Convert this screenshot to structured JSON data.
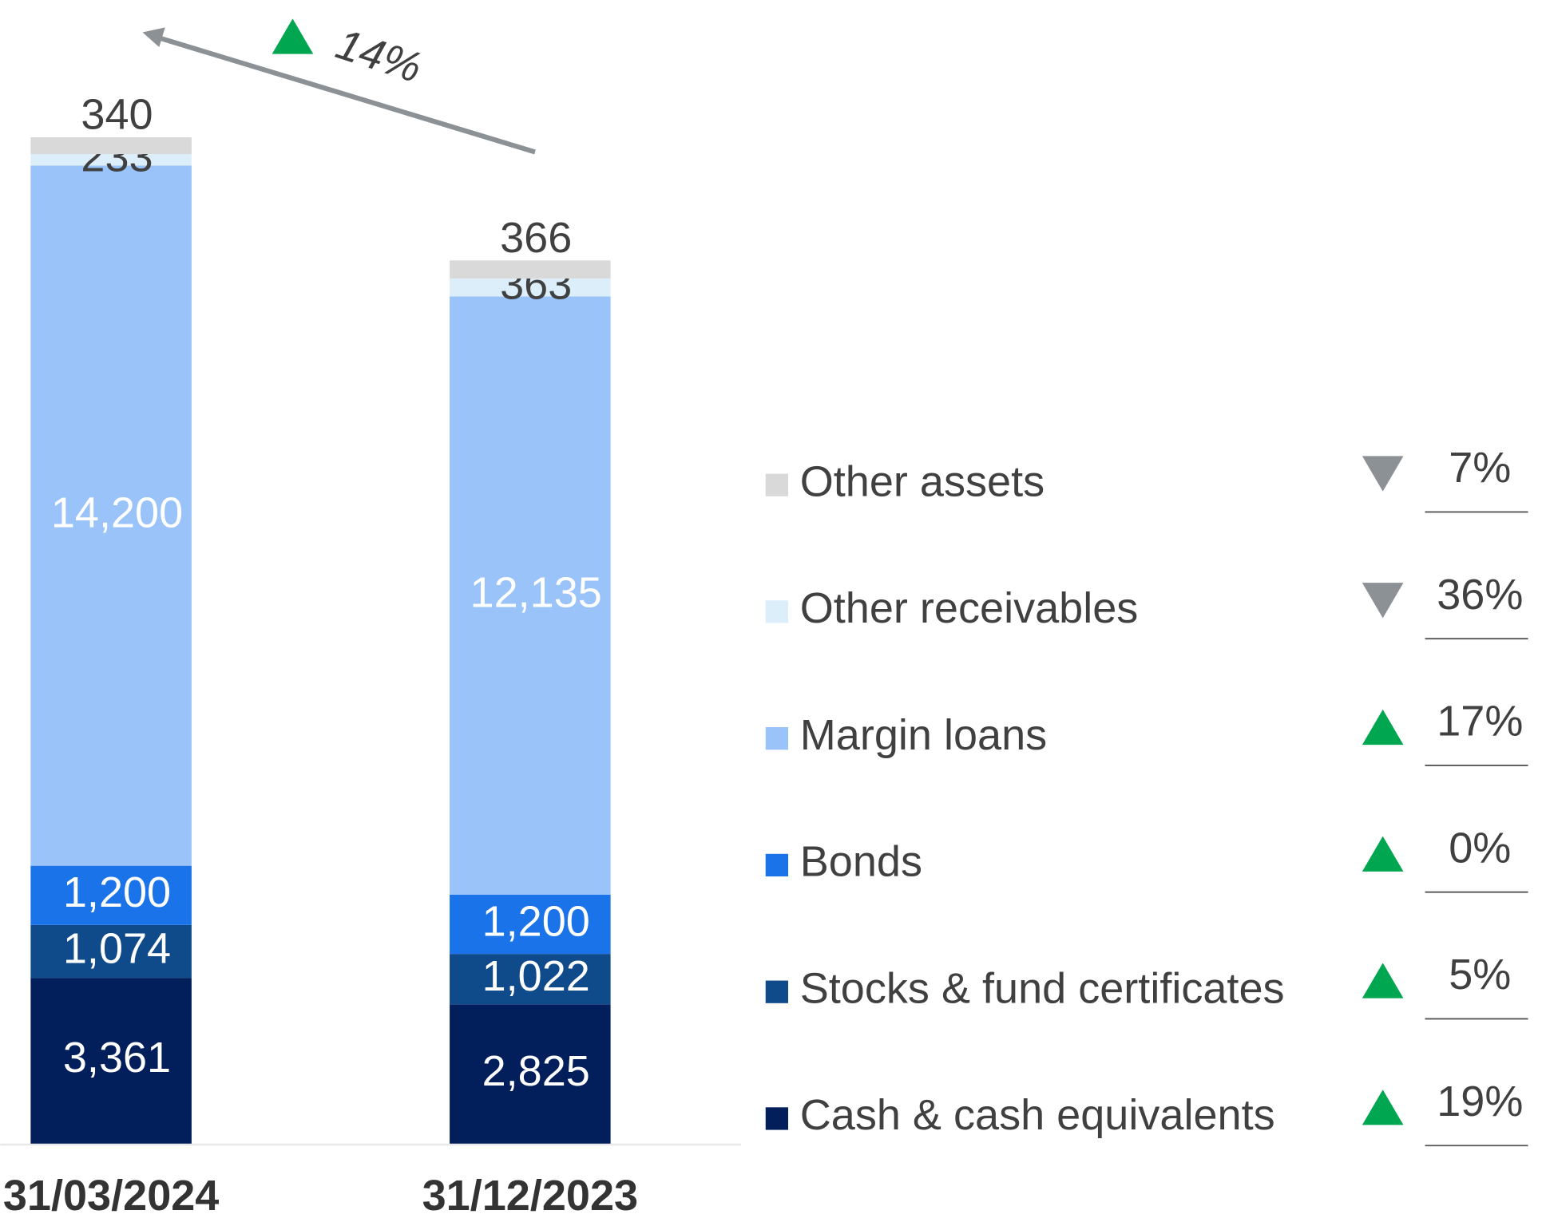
{
  "chart_data": {
    "type": "bar",
    "stacked": true,
    "categories": [
      "31/03/2024",
      "31/12/2023"
    ],
    "series": [
      {
        "name": "Cash & cash equivalents",
        "color": "#021f5c",
        "values": [
          3361,
          2825
        ],
        "value_labels": [
          "3,361",
          "2,825"
        ],
        "change": {
          "value": 19,
          "label": "19%",
          "direction": "up"
        }
      },
      {
        "name": "Stocks & fund certificates",
        "color": "#0f4a8a",
        "values": [
          1074,
          1022
        ],
        "value_labels": [
          "1,074",
          "1,022"
        ],
        "change": {
          "value": 5,
          "label": "5%",
          "direction": "up"
        }
      },
      {
        "name": "Bonds",
        "color": "#1a73e8",
        "values": [
          1200,
          1200
        ],
        "value_labels": [
          "1,200",
          "1,200"
        ],
        "change": {
          "value": 0,
          "label": "0%",
          "direction": "up"
        }
      },
      {
        "name": "Margin loans",
        "color": "#99c3f9",
        "values": [
          14200,
          12135
        ],
        "value_labels": [
          "14,200",
          "12,135"
        ],
        "change": {
          "value": 17,
          "label": "17%",
          "direction": "up"
        }
      },
      {
        "name": "Other receivables",
        "color": "#ddeefb",
        "values": [
          233,
          363
        ],
        "change": {
          "value": 36,
          "label": "36%",
          "direction": "down"
        }
      },
      {
        "name": "Other assets",
        "color": "#d9d9d9",
        "values": [
          340,
          366
        ],
        "change": {
          "value": 7,
          "label": "7%",
          "direction": "down"
        }
      }
    ],
    "annotation": {
      "label": "14%",
      "direction": "up"
    }
  }
}
